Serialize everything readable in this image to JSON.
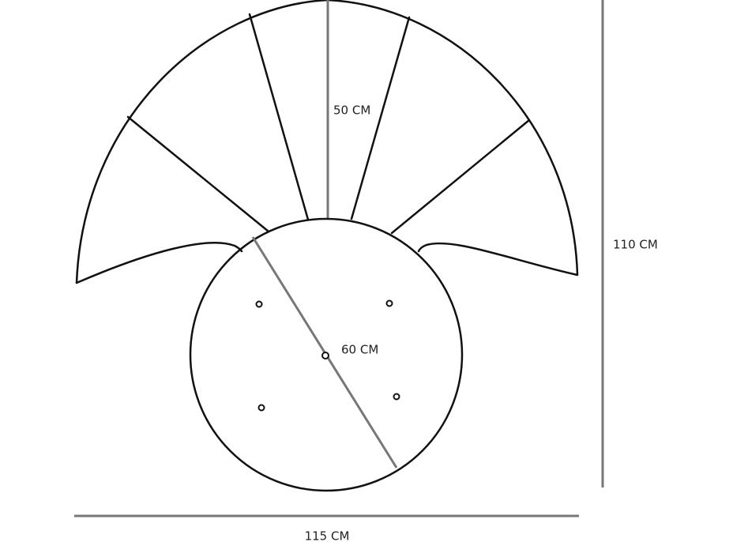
{
  "dimensions": {
    "fan_height": "50 CM",
    "circle_diameter": "60 CM",
    "total_height": "110 CM",
    "total_width": "115 CM"
  }
}
